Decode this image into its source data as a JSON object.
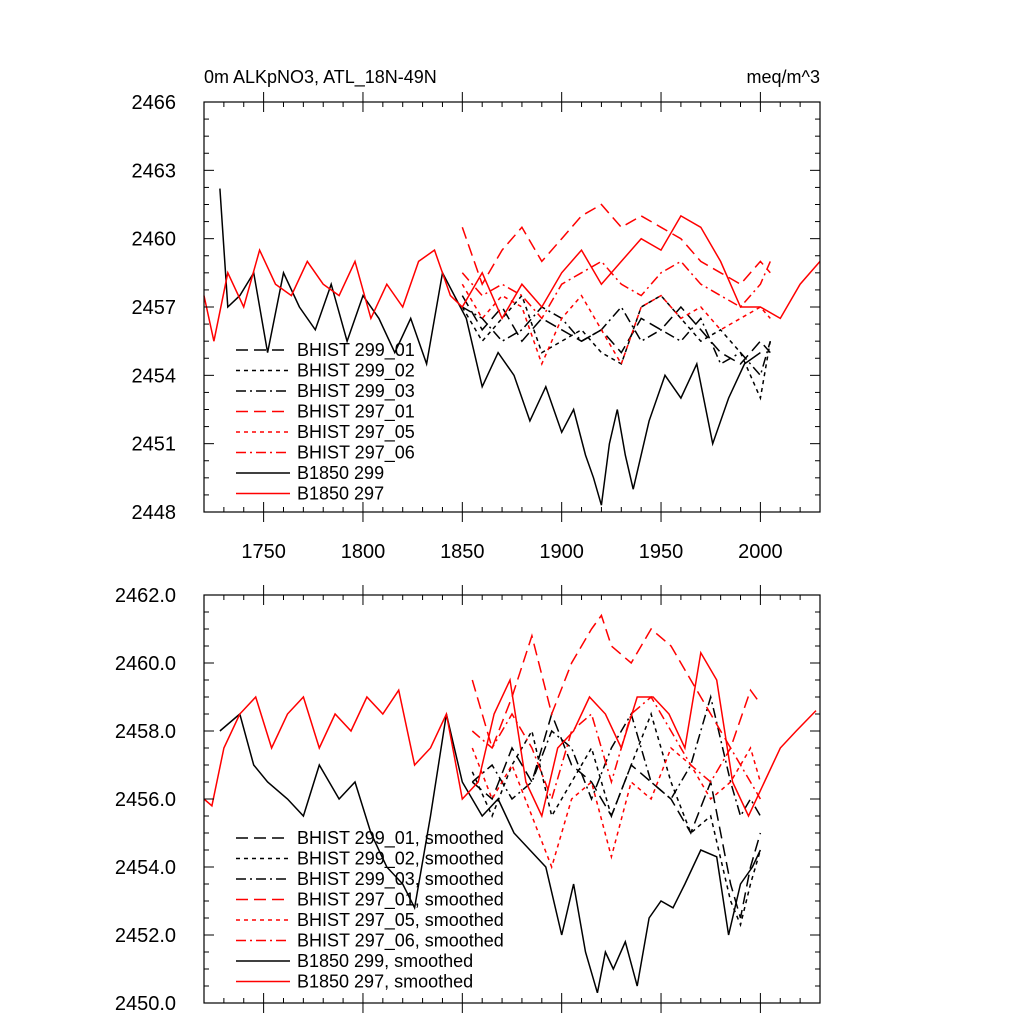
{
  "chart_data": [
    {
      "type": "line",
      "title": "0m ALKpNO3, ATL_18N-49N",
      "units": "meq/m^3",
      "xlim": [
        1720,
        2030
      ],
      "ylim": [
        2448,
        2466
      ],
      "xticks": [
        1750,
        1800,
        1850,
        1900,
        1950,
        2000
      ],
      "xtick_labels": [
        "1750",
        "1800",
        "1850",
        "1900",
        "1950",
        "2000"
      ],
      "yticks": [
        2448,
        2451,
        2454,
        2457,
        2460,
        2463,
        2466
      ],
      "ytick_labels": [
        "2448",
        "2451",
        "2454",
        "2457",
        "2460",
        "2463",
        "2466"
      ],
      "legend_position": "lower-left",
      "series": [
        {
          "name": "BHIST 299_01",
          "color": "#000000",
          "dash": "long-dash",
          "x": [
            1850,
            1860,
            1870,
            1880,
            1890,
            1900,
            1910,
            1920,
            1930,
            1940,
            1950,
            1960,
            1970,
            1980,
            1990,
            2000,
            2005
          ],
          "y": [
            2457.5,
            2456.0,
            2457.0,
            2455.5,
            2456.5,
            2456.0,
            2455.5,
            2456.0,
            2455.0,
            2456.5,
            2456.0,
            2457.0,
            2456.0,
            2455.0,
            2454.5,
            2455.5,
            2455.0
          ]
        },
        {
          "name": "BHIST 299_02",
          "color": "#000000",
          "dash": "short-dash",
          "x": [
            1850,
            1860,
            1870,
            1880,
            1890,
            1900,
            1910,
            1920,
            1930,
            1940,
            1950,
            1960,
            1970,
            1980,
            1990,
            2000,
            2005
          ],
          "y": [
            2457.0,
            2455.5,
            2456.5,
            2457.5,
            2455.0,
            2455.5,
            2456.0,
            2455.0,
            2454.5,
            2457.0,
            2457.5,
            2456.5,
            2455.5,
            2456.0,
            2455.0,
            2453.0,
            2455.5
          ]
        },
        {
          "name": "BHIST 299_03",
          "color": "#000000",
          "dash": "dash-dot",
          "x": [
            1850,
            1860,
            1870,
            1880,
            1890,
            1900,
            1910,
            1920,
            1930,
            1940,
            1950,
            1960,
            1970,
            1980,
            1990,
            2000,
            2005
          ],
          "y": [
            2457.0,
            2456.5,
            2455.5,
            2456.0,
            2457.0,
            2456.5,
            2455.5,
            2456.0,
            2457.0,
            2455.5,
            2456.0,
            2455.5,
            2456.5,
            2454.5,
            2455.0,
            2454.0,
            2455.5
          ]
        },
        {
          "name": "BHIST 297_01",
          "color": "#ff0000",
          "dash": "long-dash",
          "x": [
            1850,
            1860,
            1870,
            1880,
            1890,
            1900,
            1910,
            1920,
            1930,
            1940,
            1950,
            1960,
            1970,
            1980,
            1990,
            2000,
            2005
          ],
          "y": [
            2460.5,
            2458.0,
            2459.5,
            2460.5,
            2459.0,
            2460.0,
            2461.0,
            2461.5,
            2460.5,
            2461.0,
            2460.5,
            2460.0,
            2459.0,
            2458.5,
            2458.0,
            2459.0,
            2458.5
          ]
        },
        {
          "name": "BHIST 297_05",
          "color": "#ff0000",
          "dash": "short-dash",
          "x": [
            1850,
            1860,
            1870,
            1880,
            1890,
            1900,
            1910,
            1920,
            1930,
            1940,
            1950,
            1960,
            1970,
            1980,
            1990,
            2000,
            2005
          ],
          "y": [
            2458.0,
            2456.5,
            2457.5,
            2457.0,
            2454.5,
            2456.5,
            2457.5,
            2456.0,
            2454.5,
            2457.0,
            2457.5,
            2456.5,
            2457.0,
            2456.0,
            2456.5,
            2457.0,
            2456.5
          ]
        },
        {
          "name": "BHIST 297_06",
          "color": "#ff0000",
          "dash": "dash-dot",
          "x": [
            1850,
            1860,
            1870,
            1880,
            1890,
            1900,
            1910,
            1920,
            1930,
            1940,
            1950,
            1960,
            1970,
            1980,
            1990,
            2000,
            2005
          ],
          "y": [
            2458.5,
            2457.5,
            2458.0,
            2457.5,
            2456.5,
            2458.0,
            2458.5,
            2459.0,
            2458.0,
            2457.5,
            2458.5,
            2459.0,
            2458.0,
            2457.5,
            2457.0,
            2458.0,
            2459.0
          ]
        },
        {
          "name": "B1850 299",
          "color": "#000000",
          "dash": "solid",
          "x": [
            1728,
            1732,
            1738,
            1745,
            1752,
            1760,
            1768,
            1776,
            1784,
            1792,
            1800,
            1808,
            1816,
            1824,
            1832,
            1840,
            1846,
            1852,
            1860,
            1868,
            1876,
            1884,
            1892,
            1900,
            1906,
            1912,
            1916,
            1920,
            1924,
            1928,
            1932,
            1936,
            1944,
            1952,
            1960,
            1968,
            1976,
            1984,
            1992,
            2000
          ],
          "y": [
            2462.2,
            2457.0,
            2457.5,
            2458.5,
            2455.0,
            2458.5,
            2457.0,
            2456.0,
            2458.0,
            2455.5,
            2457.5,
            2456.5,
            2455.0,
            2456.5,
            2454.5,
            2458.5,
            2457.5,
            2456.5,
            2453.5,
            2455.0,
            2454.0,
            2452.0,
            2453.5,
            2451.5,
            2452.5,
            2450.5,
            2449.5,
            2448.3,
            2451.0,
            2452.5,
            2450.5,
            2449.0,
            2452.0,
            2454.0,
            2453.0,
            2454.5,
            2451.0,
            2453.0,
            2454.5,
            2455.0
          ]
        },
        {
          "name": "B1850 297",
          "color": "#ff0000",
          "dash": "solid",
          "x": [
            1720,
            1725,
            1732,
            1740,
            1748,
            1756,
            1764,
            1772,
            1780,
            1788,
            1796,
            1804,
            1812,
            1820,
            1828,
            1836,
            1844,
            1850,
            1860,
            1870,
            1880,
            1890,
            1900,
            1910,
            1920,
            1930,
            1940,
            1950,
            1960,
            1970,
            1980,
            1990,
            2000,
            2010,
            2020,
            2030
          ],
          "y": [
            2457.5,
            2455.5,
            2458.5,
            2457.0,
            2459.5,
            2458.0,
            2457.5,
            2459.0,
            2458.0,
            2457.5,
            2459.0,
            2456.5,
            2458.0,
            2457.0,
            2459.0,
            2459.5,
            2457.5,
            2457.0,
            2458.5,
            2456.5,
            2458.0,
            2457.0,
            2458.5,
            2459.5,
            2458.0,
            2459.0,
            2460.0,
            2459.5,
            2461.0,
            2460.5,
            2459.0,
            2457.0,
            2457.0,
            2456.5,
            2458.0,
            2459.0
          ]
        }
      ]
    },
    {
      "type": "line",
      "title": "",
      "xlim": [
        1720,
        2030
      ],
      "ylim": [
        2450.0,
        2462.0
      ],
      "yticks": [
        2450.0,
        2452.0,
        2454.0,
        2456.0,
        2458.0,
        2460.0,
        2462.0
      ],
      "ytick_labels": [
        "2450.0",
        "2452.0",
        "2454.0",
        "2456.0",
        "2458.0",
        "2460.0",
        "2462.0"
      ],
      "legend_position": "lower-left",
      "series": [
        {
          "name": "BHIST 299_01, smoothed",
          "color": "#000000",
          "dash": "long-dash",
          "x": [
            1855,
            1865,
            1875,
            1885,
            1895,
            1905,
            1915,
            1925,
            1935,
            1945,
            1955,
            1965,
            1975,
            1985,
            1990,
            1995,
            2000
          ],
          "y": [
            2456.5,
            2456.0,
            2457.5,
            2456.5,
            2458.5,
            2457.0,
            2456.5,
            2455.5,
            2457.0,
            2456.5,
            2456.0,
            2455.0,
            2456.5,
            2453.5,
            2452.5,
            2454.0,
            2455.0
          ]
        },
        {
          "name": "BHIST 299_02, smoothed",
          "color": "#000000",
          "dash": "short-dash",
          "x": [
            1855,
            1865,
            1875,
            1885,
            1895,
            1905,
            1915,
            1925,
            1935,
            1945,
            1955,
            1965,
            1975,
            1985,
            1990,
            1995,
            2000
          ],
          "y": [
            2456.8,
            2455.5,
            2457.0,
            2458.0,
            2455.5,
            2456.5,
            2457.5,
            2455.5,
            2457.0,
            2458.5,
            2456.5,
            2455.0,
            2455.5,
            2453.0,
            2452.3,
            2453.5,
            2454.5
          ]
        },
        {
          "name": "BHIST 299_03, smoothed",
          "color": "#000000",
          "dash": "dash-dot",
          "x": [
            1855,
            1865,
            1875,
            1885,
            1895,
            1905,
            1915,
            1925,
            1935,
            1945,
            1955,
            1965,
            1975,
            1985,
            1990,
            1995,
            2000
          ],
          "y": [
            2456.5,
            2457.0,
            2456.0,
            2456.5,
            2458.0,
            2457.5,
            2456.0,
            2457.5,
            2458.5,
            2456.5,
            2456.0,
            2457.0,
            2459.0,
            2456.5,
            2455.5,
            2456.0,
            2455.5
          ]
        },
        {
          "name": "BHIST 297_01, smoothed",
          "color": "#ff0000",
          "dash": "long-dash",
          "x": [
            1855,
            1865,
            1875,
            1885,
            1895,
            1905,
            1915,
            1920,
            1925,
            1935,
            1945,
            1955,
            1965,
            1975,
            1985,
            1995,
            2000
          ],
          "y": [
            2459.5,
            2457.5,
            2459.0,
            2460.8,
            2458.5,
            2460.0,
            2461.0,
            2461.4,
            2460.5,
            2460.0,
            2461.0,
            2460.5,
            2459.5,
            2458.5,
            2457.5,
            2459.2,
            2458.8
          ]
        },
        {
          "name": "BHIST 297_05, smoothed",
          "color": "#ff0000",
          "dash": "short-dash",
          "x": [
            1855,
            1865,
            1875,
            1885,
            1895,
            1905,
            1915,
            1925,
            1935,
            1945,
            1955,
            1965,
            1975,
            1985,
            1995,
            2000
          ],
          "y": [
            2457.5,
            2456.0,
            2457.0,
            2455.5,
            2454.0,
            2456.0,
            2456.5,
            2454.3,
            2456.5,
            2456.0,
            2457.5,
            2457.0,
            2456.0,
            2456.5,
            2457.5,
            2456.5
          ]
        },
        {
          "name": "BHIST 297_06, smoothed",
          "color": "#ff0000",
          "dash": "dash-dot",
          "x": [
            1855,
            1865,
            1875,
            1885,
            1895,
            1905,
            1915,
            1925,
            1935,
            1945,
            1955,
            1965,
            1975,
            1985,
            1995,
            2000
          ],
          "y": [
            2458.0,
            2457.5,
            2458.5,
            2457.5,
            2456.0,
            2458.0,
            2458.5,
            2456.5,
            2458.5,
            2459.0,
            2458.0,
            2457.0,
            2456.5,
            2457.5,
            2456.5,
            2456.0
          ]
        },
        {
          "name": "B1850 299, smoothed",
          "color": "#000000",
          "dash": "solid",
          "x": [
            1728,
            1738,
            1745,
            1752,
            1762,
            1770,
            1778,
            1788,
            1796,
            1804,
            1812,
            1820,
            1826,
            1834,
            1842,
            1850,
            1860,
            1868,
            1876,
            1884,
            1892,
            1900,
            1906,
            1912,
            1918,
            1922,
            1926,
            1932,
            1938,
            1944,
            1950,
            1956,
            1962,
            1970,
            1978,
            1984,
            1990,
            1996,
            2000
          ],
          "y": [
            2458.0,
            2458.5,
            2457.0,
            2456.5,
            2456.0,
            2455.5,
            2457.0,
            2456.0,
            2456.5,
            2455.0,
            2454.0,
            2453.5,
            2452.8,
            2455.5,
            2458.5,
            2456.5,
            2455.5,
            2456.0,
            2455.0,
            2454.5,
            2454.0,
            2452.0,
            2453.5,
            2451.5,
            2450.3,
            2451.5,
            2451.0,
            2451.8,
            2450.5,
            2452.5,
            2453.0,
            2452.8,
            2453.5,
            2454.5,
            2454.3,
            2452.0,
            2453.5,
            2454.0,
            2454.5
          ]
        },
        {
          "name": "B1850 297, smoothed",
          "color": "#ff0000",
          "dash": "solid",
          "x": [
            1720,
            1724,
            1730,
            1738,
            1746,
            1754,
            1762,
            1770,
            1778,
            1786,
            1794,
            1802,
            1810,
            1818,
            1826,
            1834,
            1842,
            1850,
            1858,
            1866,
            1874,
            1882,
            1890,
            1898,
            1906,
            1914,
            1922,
            1930,
            1938,
            1946,
            1954,
            1962,
            1970,
            1978,
            1986,
            1994,
            2002,
            2010,
            2018,
            2028
          ],
          "y": [
            2456.0,
            2455.8,
            2457.5,
            2458.5,
            2459.0,
            2457.5,
            2458.5,
            2459.0,
            2457.5,
            2458.5,
            2458.0,
            2459.0,
            2458.5,
            2459.2,
            2457.0,
            2457.5,
            2458.5,
            2456.0,
            2456.5,
            2458.5,
            2459.5,
            2456.5,
            2455.5,
            2457.5,
            2458.0,
            2459.0,
            2458.5,
            2457.5,
            2459.0,
            2459.0,
            2458.5,
            2457.5,
            2460.3,
            2459.5,
            2456.5,
            2455.5,
            2456.5,
            2457.5,
            2458.0,
            2458.6
          ]
        }
      ]
    }
  ]
}
